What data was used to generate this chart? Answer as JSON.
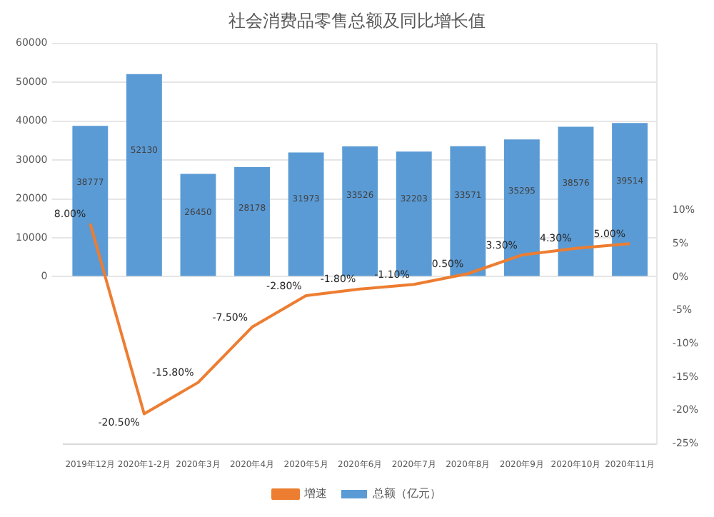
{
  "chart_data": {
    "type": "bar",
    "title": "社会消费品零售总额及同比增长值",
    "categories": [
      "2019年12月",
      "2020年1-2月",
      "2020年3月",
      "2020年4月",
      "2020年5月",
      "2020年6月",
      "2020年7月",
      "2020年8月",
      "2020年9月",
      "2020年10月",
      "2020年11月"
    ],
    "series": [
      {
        "name": "总额（亿元）",
        "color": "#5b9bd5",
        "values": [
          38777,
          52130,
          26450,
          28178,
          31973,
          33526,
          32203,
          33571,
          35295,
          38576,
          39514
        ],
        "value_labels": [
          "38777",
          "52130",
          "26450",
          "28178",
          "31973",
          "33526",
          "32203",
          "33571",
          "35295",
          "38576",
          "39514"
        ]
      },
      {
        "name": "增速",
        "type": "line",
        "axis": "y2",
        "color": "#ed7d31",
        "marker": "none",
        "values": [
          8.0,
          -20.5,
          -15.8,
          -7.5,
          -2.8,
          -1.8,
          -1.1,
          0.5,
          3.3,
          4.3,
          5.0
        ],
        "value_labels": [
          "8.00%",
          "-20.50%",
          "-15.80%",
          "-7.50%",
          "-2.80%",
          "-1.80%",
          "-1.10%",
          "0.50%",
          "3.30%",
          "4.30%",
          "5.00%"
        ]
      }
    ],
    "ylim": [
      -43000,
      60000
    ],
    "yticks": [
      0,
      10000,
      20000,
      30000,
      40000,
      50000,
      60000
    ],
    "y2lim": [
      -25,
      35
    ],
    "y2ticks": [
      {
        "value": -25,
        "label": "-25%"
      },
      {
        "value": -20,
        "label": "-20%"
      },
      {
        "value": -15,
        "label": "-15%"
      },
      {
        "value": -10,
        "label": "-10%"
      },
      {
        "value": -5,
        "label": "-5%"
      },
      {
        "value": 0,
        "label": "0%"
      },
      {
        "value": 5,
        "label": "5%"
      },
      {
        "value": 10,
        "label": "10%"
      }
    ],
    "grid": "y",
    "legend": "bottom"
  }
}
